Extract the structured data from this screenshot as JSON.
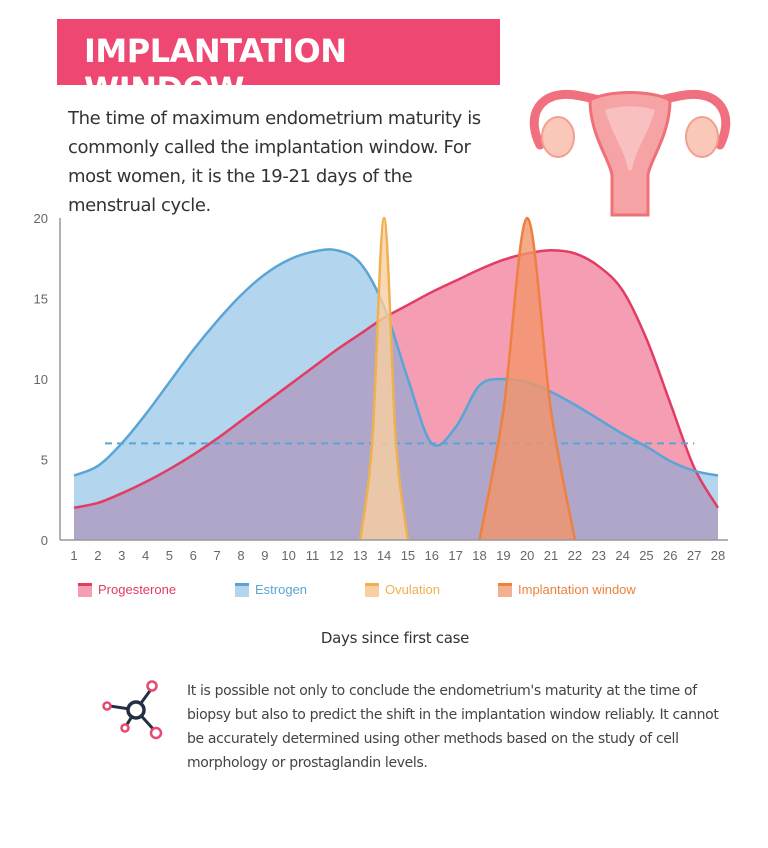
{
  "header": {
    "title": "IMPLANTATION WINDOW"
  },
  "intro": "The time of maximum endometrium maturity is commonly called the implantation window. For most women, it is the 19-21 days of the menstrual cycle.",
  "illustration": {
    "icon": "uterus-icon"
  },
  "chart_data": {
    "type": "area",
    "xlabel": "Days since first case",
    "ylabel": "",
    "xlim": [
      1,
      28
    ],
    "ylim": [
      0,
      20
    ],
    "x_ticks": [
      1,
      2,
      3,
      4,
      5,
      6,
      7,
      8,
      9,
      10,
      11,
      12,
      13,
      14,
      15,
      16,
      17,
      18,
      19,
      20,
      21,
      22,
      23,
      24,
      25,
      26,
      27,
      28
    ],
    "y_ticks": [
      0,
      5,
      10,
      15,
      20
    ],
    "grid": false,
    "legend_position": "bottom",
    "reference_line": {
      "y": 6,
      "x_range": [
        2.3,
        27
      ],
      "style": "dashed",
      "color": "#5aa5d6"
    },
    "series": [
      {
        "name": "Progesterone",
        "color": "#e23c63",
        "fill": "#f59db3",
        "x": [
          1,
          2,
          3,
          4,
          5,
          6,
          7,
          8,
          9,
          10,
          11,
          12,
          13,
          14,
          15,
          16,
          17,
          18,
          19,
          20,
          21,
          22,
          23,
          24,
          25,
          26,
          27,
          28
        ],
        "y": [
          2,
          2.3,
          2.9,
          3.6,
          4.4,
          5.3,
          6.3,
          7.4,
          8.5,
          9.6,
          10.7,
          11.8,
          12.8,
          13.8,
          14.6,
          15.4,
          16.1,
          16.8,
          17.4,
          17.8,
          18,
          17.8,
          17,
          15.5,
          12.5,
          8.5,
          4.5,
          2
        ]
      },
      {
        "name": "Estrogen",
        "color": "#5aa5d6",
        "fill": "#b3d5ee",
        "x": [
          1,
          2,
          3,
          4,
          5,
          6,
          7,
          8,
          9,
          10,
          11,
          12,
          13,
          14,
          15,
          16,
          17,
          18,
          19,
          20,
          21,
          22,
          23,
          24,
          25,
          26,
          27,
          28
        ],
        "y": [
          4,
          4.6,
          6,
          7.8,
          9.8,
          11.8,
          13.6,
          15.2,
          16.5,
          17.4,
          17.9,
          18,
          17.2,
          14.5,
          10,
          6,
          7,
          9.6,
          10,
          9.8,
          9.2,
          8.4,
          7.5,
          6.6,
          5.8,
          4.9,
          4.3,
          4
        ]
      },
      {
        "name": "Ovulation",
        "color": "#f0b050",
        "fill": "#f8d0a0",
        "x": [
          13,
          13.5,
          14,
          14.5,
          15
        ],
        "y": [
          0,
          6,
          20,
          6,
          0
        ]
      },
      {
        "name": "Implantation window",
        "color": "#ee8040",
        "fill": "#f2956a",
        "x": [
          18,
          19,
          20,
          21,
          22
        ],
        "y": [
          0,
          8,
          20,
          8,
          0
        ]
      }
    ],
    "overlap_fill": "#afa6c9"
  },
  "note": {
    "icon": "molecule-icon",
    "text": "It is possible not only to conclude the endometrium's maturity at the time of biopsy but also to predict the shift in the implantation window reliably. It cannot be accurately determined using other methods based on the study of cell morphology or prostaglandin levels."
  }
}
